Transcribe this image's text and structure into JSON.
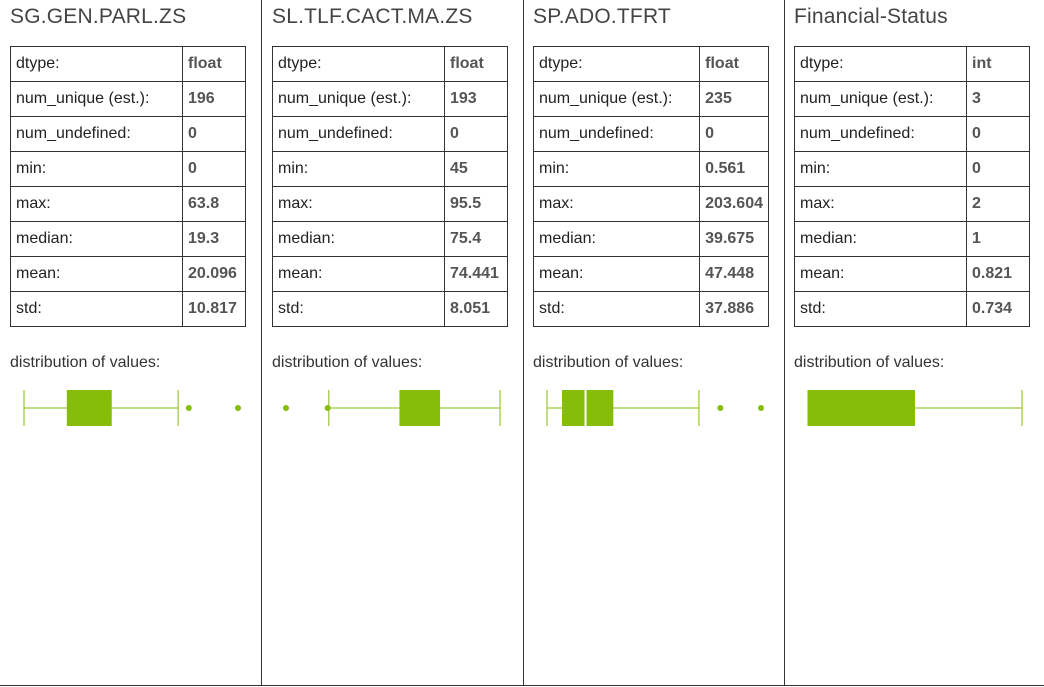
{
  "accent_color": "#86bd0a",
  "stat_labels": {
    "dtype": "dtype:",
    "num_unique": "num_unique (est.):",
    "num_undefined": "num_undefined:",
    "min": "min:",
    "max": "max:",
    "median": "median:",
    "mean": "mean:",
    "std": "std:"
  },
  "distribution_label": "distribution of values:",
  "columns": [
    {
      "name": "SG.GEN.PARL.ZS",
      "dtype": "float",
      "num_unique": "196",
      "num_undefined": "0",
      "min": "0",
      "max": "63.8",
      "median": "19.3",
      "mean": "20.096",
      "std": "10.817",
      "boxplot": {
        "whisker_low": 0,
        "q1": 0.2,
        "median_pos": 0.2,
        "q3": 0.41,
        "whisker_high": 0.72,
        "outliers": [
          0.77,
          1.0
        ],
        "show_median_line": false
      }
    },
    {
      "name": "SL.TLF.CACT.MA.ZS",
      "dtype": "float",
      "num_unique": "193",
      "num_undefined": "0",
      "min": "45",
      "max": "95.5",
      "median": "75.4",
      "mean": "74.441",
      "std": "8.051",
      "boxplot": {
        "whisker_low": 0.2,
        "q1": 0.53,
        "median_pos": 0.53,
        "q3": 0.72,
        "whisker_high": 1.0,
        "outliers": [
          0.0,
          0.195
        ],
        "show_median_line": false
      }
    },
    {
      "name": "SP.ADO.TFRT",
      "dtype": "float",
      "num_unique": "235",
      "num_undefined": "0",
      "min": "0.561",
      "max": "203.604",
      "median": "39.675",
      "mean": "47.448",
      "std": "37.886",
      "boxplot": {
        "whisker_low": 0,
        "q1": 0.07,
        "median_pos": 0.18,
        "q3": 0.31,
        "whisker_high": 0.71,
        "outliers": [
          0.81,
          1.0
        ],
        "show_median_line": true
      }
    },
    {
      "name": "Financial-Status",
      "dtype": "int",
      "num_unique": "3",
      "num_undefined": "0",
      "min": "0",
      "max": "2",
      "median": "1",
      "mean": "0.821",
      "std": "0.734",
      "boxplot": {
        "whisker_low": 0,
        "q1": 0.0,
        "median_pos": 0.5,
        "q3": 0.5,
        "whisker_high": 1.0,
        "outliers": [],
        "show_median_line": false
      }
    }
  ]
}
